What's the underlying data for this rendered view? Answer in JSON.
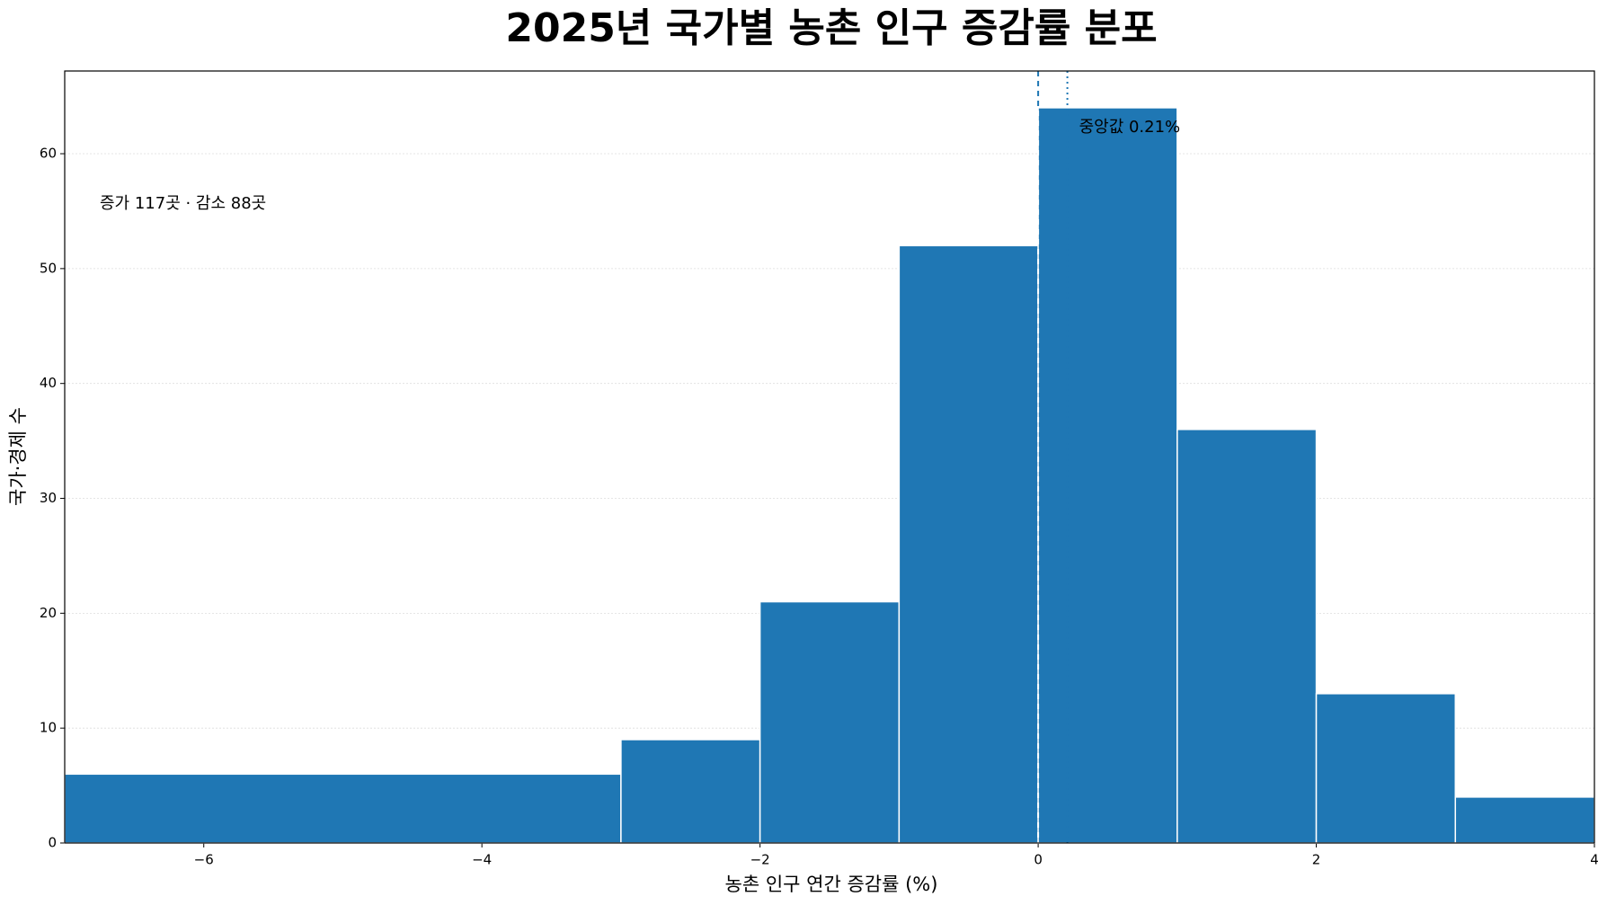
{
  "chart_data": {
    "type": "histogram",
    "title": "2025년 국가별 농촌 인구 증감률 분포",
    "x_label": "농촌 인구 연간 증감률 (%)",
    "y_label": "국가·경제 수",
    "bins": [
      -7,
      -3,
      -2,
      -1,
      0,
      1,
      2,
      3,
      4
    ],
    "values": [
      6,
      9,
      21,
      52,
      64,
      36,
      13,
      4
    ],
    "color": "#1f77b4",
    "xlim": [
      -7,
      4
    ],
    "xticks": [
      {
        "value": -6,
        "label": "−6"
      },
      {
        "value": -4,
        "label": "−4"
      },
      {
        "value": -2,
        "label": "−2"
      },
      0,
      2,
      4
    ],
    "ylim": [
      0,
      67.2
    ],
    "yticks": [
      0,
      10,
      20,
      30,
      40,
      50,
      60
    ],
    "grid": true,
    "reference_lines": [
      {
        "value": 0,
        "style": "dashed"
      },
      {
        "value": 0.21,
        "style": "dotted"
      }
    ],
    "annotations": [
      "증가 117곳 · 감소 88곳",
      "중앙값 0.21%"
    ]
  }
}
